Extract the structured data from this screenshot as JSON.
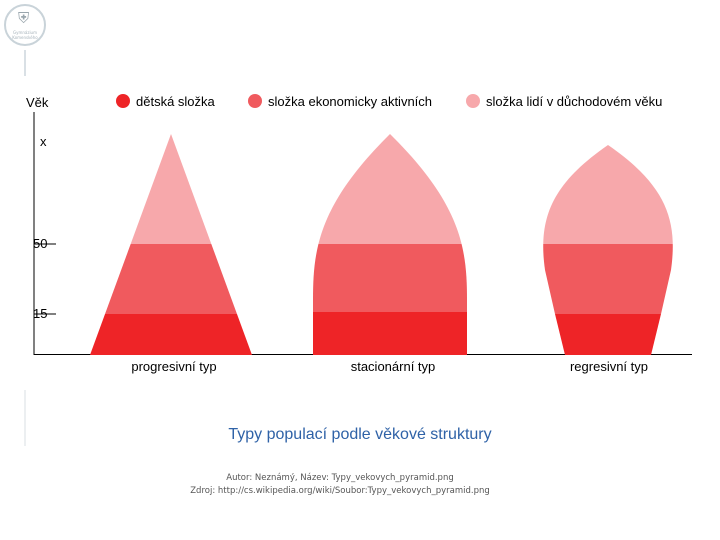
{
  "logo": {
    "text": "Gymnázium\nKomenského",
    "glyph": "⛨"
  },
  "chart_data": {
    "type": "diagram",
    "ylabel": "Věk",
    "y_ticks": [
      "x",
      "50",
      "15"
    ],
    "legend": [
      {
        "label": "dětská složka",
        "color": "#ee2427"
      },
      {
        "label": "složka ekonomicky aktivních",
        "color": "#f05a5e"
      },
      {
        "label": "složka lidí v důchodovém věku",
        "color": "#f7a8ab"
      }
    ],
    "pyramids": [
      {
        "label": "progresivní typ",
        "shape": "triangle"
      },
      {
        "label": "stacionární typ",
        "shape": "bell"
      },
      {
        "label": "regresivní typ",
        "shape": "urn"
      }
    ]
  },
  "caption": "Typy populací podle věkové struktury",
  "credit": {
    "author": "Autor: Neznámý, Název: Typy_vekovych_pyramid.png",
    "source": "Zdroj: http://cs.wikipedia.org/wiki/Soubor:Typy_vekovych_pyramid.png"
  }
}
